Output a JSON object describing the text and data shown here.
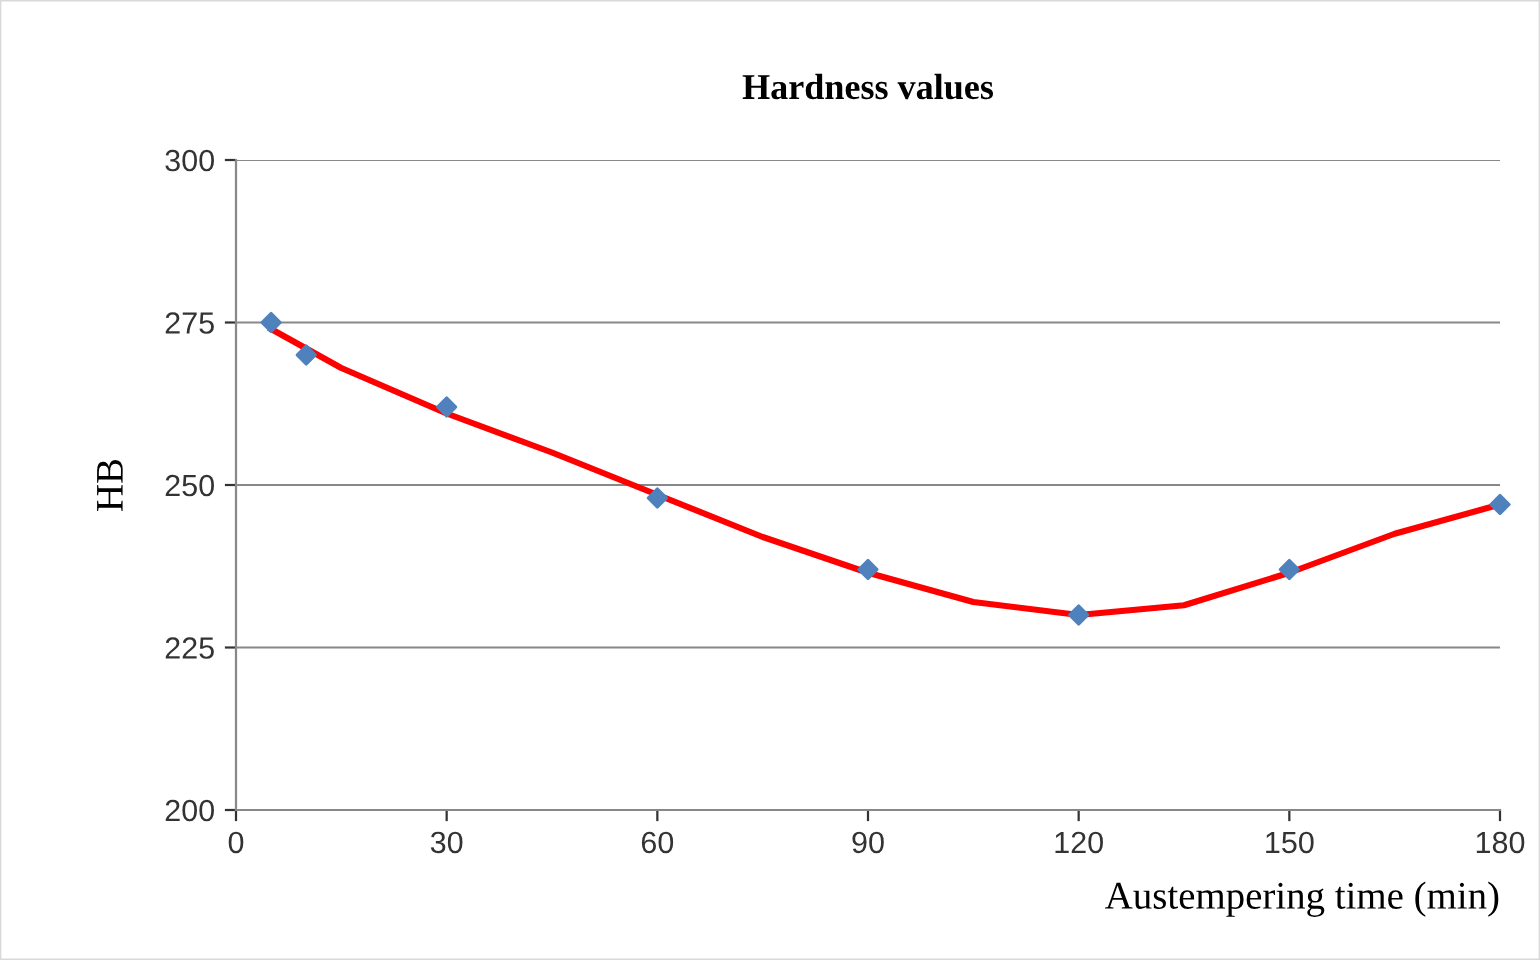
{
  "chart_data": {
    "type": "scatter",
    "title": "Hardness values",
    "xlabel": "Austempering time (min)",
    "ylabel": "HB",
    "xlim": [
      0,
      180
    ],
    "xticks": [
      0,
      30,
      60,
      90,
      120,
      150,
      180
    ],
    "ylim": [
      200,
      300
    ],
    "yticks": [
      200,
      225,
      250,
      275,
      300
    ],
    "grid": "y",
    "marker": "diamond",
    "series": [
      {
        "color": "#4f81bd",
        "x": [
          5,
          10,
          30,
          60,
          90,
          120,
          150,
          180
        ],
        "values": [
          275,
          270,
          262,
          248,
          237,
          230,
          237,
          247
        ]
      },
      {
        "type": "line",
        "color": "#ff0000",
        "marker": "none",
        "line_style": "solid",
        "x": [
          5,
          15,
          30,
          45,
          60,
          75,
          90,
          105,
          120,
          135,
          150,
          165,
          180
        ],
        "values": [
          274,
          268,
          261,
          255,
          248.5,
          242,
          236.5,
          232,
          230,
          231.5,
          236.5,
          242.5,
          247
        ]
      }
    ]
  }
}
